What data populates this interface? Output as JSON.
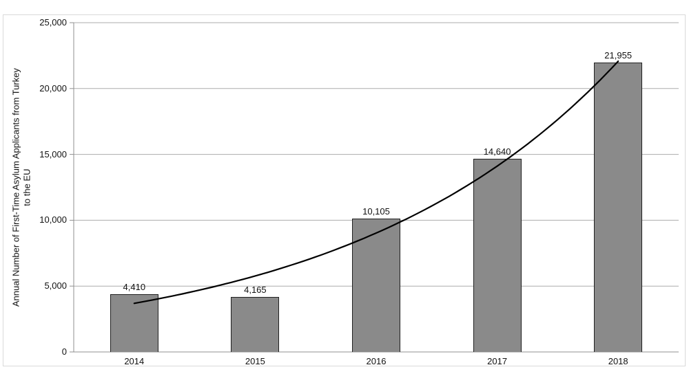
{
  "chart_data": {
    "type": "bar",
    "title": "",
    "xlabel": "",
    "ylabel": "Annual Number of First-Time Asylum Applicants from Turkey to the EU",
    "ylabel_lines": [
      "Annual Number of First-Time Asylum Applicants from Turkey",
      "to the EU"
    ],
    "categories": [
      "2014",
      "2015",
      "2016",
      "2017",
      "2018"
    ],
    "values": [
      4410,
      4165,
      10105,
      14640,
      21955
    ],
    "data_labels": [
      "4,410",
      "4,165",
      "10,105",
      "14,640",
      "21,955"
    ],
    "ylim": [
      0,
      25000
    ],
    "ytick_interval": 5000,
    "yticks": [
      {
        "value": 25000,
        "label": "25,000"
      },
      {
        "value": 20000,
        "label": "20,000"
      },
      {
        "value": 15000,
        "label": "15,000"
      },
      {
        "value": 10000,
        "label": "10,000"
      },
      {
        "value": 5000,
        "label": "5,000"
      },
      {
        "value": 0,
        "label": "0"
      }
    ],
    "grid": "horizontal",
    "legend": "none",
    "trendline": {
      "type": "exponential",
      "values_at_categories": [
        3690,
        5770,
        9030,
        14110,
        22070
      ]
    },
    "colors": {
      "bar_fill": "#8a8a8a",
      "bar_border": "#1f1f1f",
      "gridline": "#ababab",
      "axis": "#8f8f8f",
      "trendline": "#000000",
      "figure_border": "#d9d9d9",
      "text": "#111111",
      "background": "#ffffff"
    }
  }
}
